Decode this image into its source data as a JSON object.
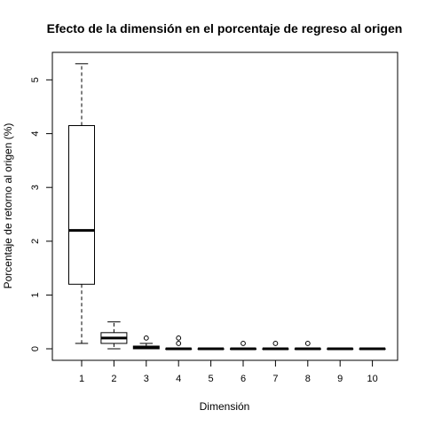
{
  "chart_data": {
    "type": "boxplot",
    "title": "Efecto de la dimensión en el porcentaje de regreso al origen",
    "xlabel": "Dimensión",
    "ylabel": "Porcentaje de retorno al origen (%)",
    "ylim": [
      -0.2,
      5.5
    ],
    "yticks": [
      0,
      1,
      2,
      3,
      4,
      5
    ],
    "grid": false,
    "boxes": [
      {
        "label": "1",
        "min": 0.1,
        "q1": 1.2,
        "median": 2.2,
        "q3": 4.15,
        "max": 5.3,
        "outliers": []
      },
      {
        "label": "2",
        "min": 0.0,
        "q1": 0.1,
        "median": 0.2,
        "q3": 0.3,
        "max": 0.5,
        "outliers": []
      },
      {
        "label": "3",
        "min": 0.0,
        "q1": 0.0,
        "median": 0.02,
        "q3": 0.05,
        "max": 0.1,
        "outliers": [
          0.2
        ]
      },
      {
        "label": "4",
        "min": 0.0,
        "q1": 0.0,
        "median": 0.0,
        "q3": 0.0,
        "max": 0.0,
        "outliers": [
          0.1,
          0.2
        ]
      },
      {
        "label": "5",
        "min": 0.0,
        "q1": 0.0,
        "median": 0.0,
        "q3": 0.0,
        "max": 0.0,
        "outliers": []
      },
      {
        "label": "6",
        "min": 0.0,
        "q1": 0.0,
        "median": 0.0,
        "q3": 0.0,
        "max": 0.0,
        "outliers": [
          0.1
        ]
      },
      {
        "label": "7",
        "min": 0.0,
        "q1": 0.0,
        "median": 0.0,
        "q3": 0.0,
        "max": 0.0,
        "outliers": [
          0.1
        ]
      },
      {
        "label": "8",
        "min": 0.0,
        "q1": 0.0,
        "median": 0.0,
        "q3": 0.0,
        "max": 0.0,
        "outliers": [
          0.1
        ]
      },
      {
        "label": "9",
        "min": 0.0,
        "q1": 0.0,
        "median": 0.0,
        "q3": 0.0,
        "max": 0.0,
        "outliers": []
      },
      {
        "label": "10",
        "min": 0.0,
        "q1": 0.0,
        "median": 0.0,
        "q3": 0.0,
        "max": 0.0,
        "outliers": []
      }
    ]
  }
}
